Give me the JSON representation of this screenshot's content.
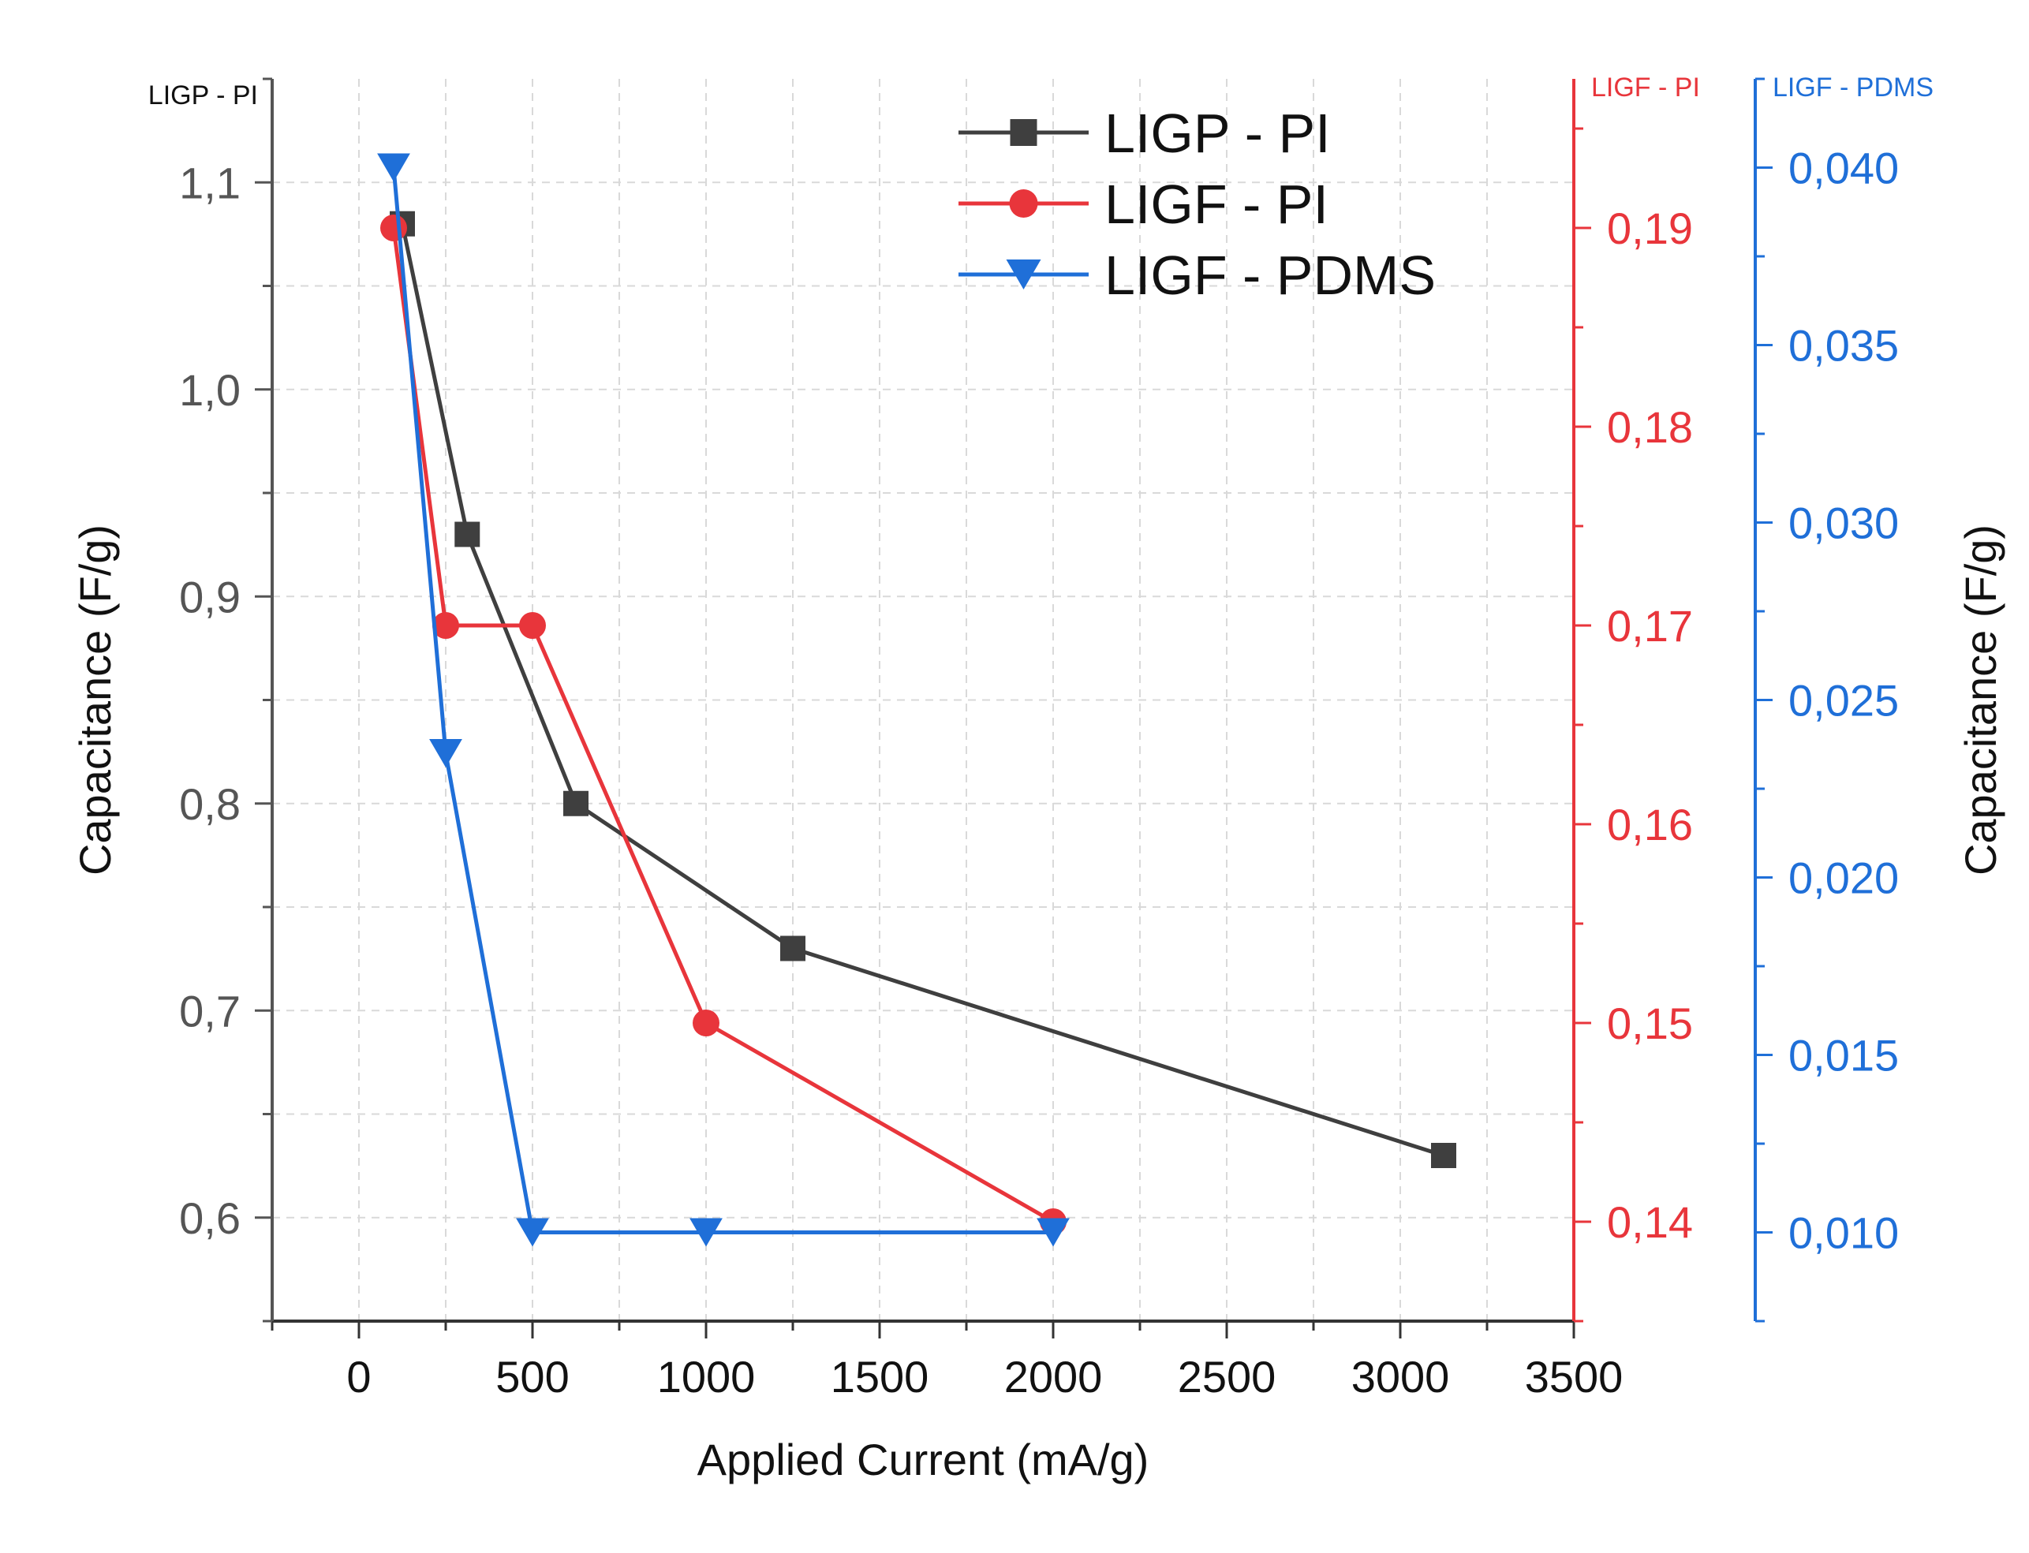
{
  "chart_data": {
    "type": "line",
    "x_axis": {
      "label": "Applied Current (mA/g)",
      "range": [
        -250,
        3500
      ],
      "ticks": [
        0,
        500,
        1000,
        1500,
        2000,
        2500,
        3000,
        3500
      ],
      "tick_labels": [
        "0",
        "500",
        "1000",
        "1500",
        "2000",
        "2500",
        "3000",
        "3500"
      ],
      "minor_step": 250
    },
    "y_axes": [
      {
        "id": "left",
        "corner_label": "LIGP - PI",
        "label": "Capacitance (F/g)",
        "color": "#555555",
        "range": [
          0.55,
          1.15
        ],
        "ticks": [
          0.6,
          0.7,
          0.8,
          0.9,
          1.0,
          1.1
        ],
        "tick_labels": [
          "0,6",
          "0,7",
          "0,8",
          "0,9",
          "1,0",
          "1,1"
        ]
      },
      {
        "id": "right1",
        "corner_label": "LIGF - PI",
        "label": "",
        "color": "#e8353b",
        "range": [
          0.135,
          0.1975
        ],
        "ticks": [
          0.14,
          0.15,
          0.16,
          0.17,
          0.18,
          0.19
        ],
        "tick_labels": [
          "0,14",
          "0,15",
          "0,16",
          "0,17",
          "0,18",
          "0,19"
        ]
      },
      {
        "id": "right2",
        "corner_label": "LIGF - PDMS",
        "label": "Capacitance (F/g)",
        "color": "#1f6fd8",
        "range": [
          0.0075,
          0.0425
        ],
        "ticks": [
          0.01,
          0.015,
          0.02,
          0.025,
          0.03,
          0.035,
          0.04
        ],
        "tick_labels": [
          "0,010",
          "0,015",
          "0,020",
          "0,025",
          "0,030",
          "0,035",
          "0,040"
        ]
      }
    ],
    "series": [
      {
        "name": "LIGP - PI",
        "axis": "left",
        "color": "#3f3f3f",
        "marker": "square",
        "x": [
          125,
          312,
          625,
          1250,
          3125
        ],
        "y": [
          1.08,
          0.93,
          0.8,
          0.73,
          0.63
        ]
      },
      {
        "name": "LIGF - PI",
        "axis": "right1",
        "color": "#e8353b",
        "marker": "circle",
        "x": [
          100,
          250,
          500,
          1000,
          2000
        ],
        "y": [
          0.19,
          0.17,
          0.17,
          0.15,
          0.14
        ]
      },
      {
        "name": "LIGF - PDMS",
        "axis": "right2",
        "color": "#1f6fd8",
        "marker": "triangle-down",
        "x": [
          100,
          250,
          500,
          1000,
          2000
        ],
        "y": [
          0.04,
          0.0235,
          0.01,
          0.01,
          0.01
        ]
      }
    ],
    "legend": {
      "position": "top-right"
    },
    "grid": true
  }
}
